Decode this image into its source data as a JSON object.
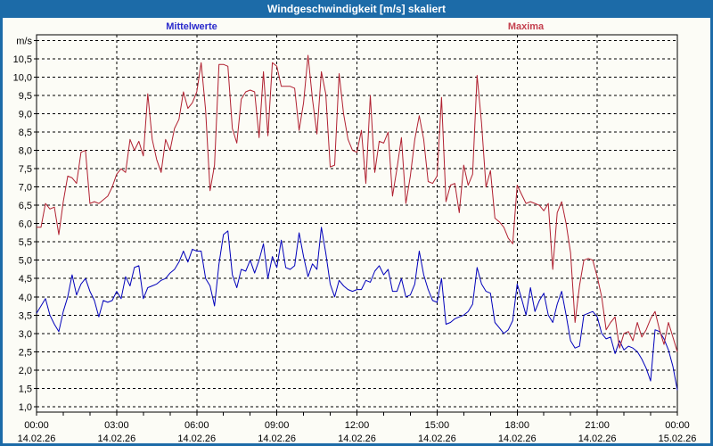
{
  "window": {
    "title": "Windgeschwindigkeit [m/s] skaliert"
  },
  "legend": {
    "mean_label": "Mittelwerte",
    "max_label": "Maxima"
  },
  "colors": {
    "titlebar": "#1c6ba8",
    "window_border": "#1c6ba8",
    "background": "#fcfcf6",
    "grid": "#000000",
    "mean_line": "#0000bb",
    "max_line": "#b02030",
    "mean_label_text": "#2a2acc",
    "max_label_text": "#c4404e"
  },
  "chart_data": {
    "type": "line",
    "title": "Windgeschwindigkeit [m/s] skaliert",
    "ylabel": "m/s",
    "xlabel": "",
    "ylim": [
      1.0,
      11.0
    ],
    "y_step": 0.5,
    "y_decimal_separator": ",",
    "grid": true,
    "grid_style": "dashed",
    "x_minutes_step": 10,
    "x_total_minutes": 1440,
    "x_tick_step_minutes": 180,
    "x_ticks": [
      {
        "time": "00:00",
        "date": "14.02.26"
      },
      {
        "time": "03:00",
        "date": "14.02.26"
      },
      {
        "time": "06:00",
        "date": "14.02.26"
      },
      {
        "time": "09:00",
        "date": "14.02.26"
      },
      {
        "time": "12:00",
        "date": "14.02.26"
      },
      {
        "time": "15:00",
        "date": "14.02.26"
      },
      {
        "time": "18:00",
        "date": "14.02.26"
      },
      {
        "time": "21:00",
        "date": "14.02.26"
      },
      {
        "time": "00:00",
        "date": "15.02.26"
      }
    ],
    "series": [
      {
        "name": "Mittelwerte",
        "color": "#0000bb",
        "values": [
          3.55,
          3.75,
          3.95,
          3.5,
          3.25,
          3.05,
          3.6,
          4.0,
          4.6,
          4.05,
          4.35,
          4.5,
          4.15,
          3.9,
          3.45,
          3.9,
          3.85,
          3.9,
          4.15,
          3.95,
          4.55,
          4.3,
          4.8,
          4.85,
          3.95,
          4.25,
          4.3,
          4.35,
          4.45,
          4.5,
          4.65,
          4.75,
          4.95,
          5.25,
          4.95,
          5.3,
          5.25,
          5.25,
          4.5,
          4.3,
          3.75,
          4.9,
          5.7,
          5.8,
          4.6,
          4.25,
          4.75,
          4.7,
          5.0,
          4.65,
          5.0,
          5.45,
          4.5,
          5.1,
          4.8,
          5.55,
          4.8,
          4.75,
          4.85,
          5.75,
          5.1,
          4.55,
          4.9,
          4.75,
          5.9,
          5.2,
          4.35,
          4.0,
          4.45,
          4.3,
          4.2,
          4.15,
          4.2,
          4.2,
          4.45,
          4.4,
          4.7,
          4.85,
          4.6,
          4.75,
          4.15,
          4.15,
          4.5,
          4.0,
          4.05,
          4.35,
          5.25,
          4.6,
          4.2,
          3.9,
          3.85,
          4.5,
          3.25,
          3.3,
          3.4,
          3.45,
          3.5,
          3.6,
          3.8,
          4.8,
          4.35,
          4.15,
          4.1,
          3.3,
          3.15,
          3.0,
          3.1,
          3.35,
          4.35,
          3.95,
          3.5,
          4.25,
          3.6,
          3.9,
          4.1,
          3.5,
          3.3,
          3.8,
          4.15,
          3.5,
          2.8,
          2.6,
          2.65,
          3.5,
          3.55,
          3.6,
          3.45,
          3.0,
          2.85,
          2.9,
          2.45,
          2.8,
          2.55,
          2.65,
          2.6,
          2.5,
          2.3,
          2.05,
          1.7,
          3.1,
          3.05,
          2.85,
          2.55,
          2.1,
          1.45
        ]
      },
      {
        "name": "Maxima",
        "color": "#b02030",
        "values": [
          5.9,
          5.9,
          6.55,
          6.4,
          6.45,
          5.7,
          6.6,
          7.3,
          7.25,
          7.1,
          7.95,
          8.0,
          6.55,
          6.6,
          6.55,
          6.65,
          6.75,
          7.0,
          7.35,
          7.5,
          7.4,
          8.3,
          8.0,
          8.25,
          7.85,
          9.55,
          8.3,
          7.75,
          7.4,
          8.3,
          8.0,
          8.6,
          8.85,
          9.6,
          9.15,
          9.3,
          9.6,
          10.4,
          9.1,
          6.9,
          7.6,
          10.35,
          10.35,
          10.3,
          8.6,
          8.2,
          9.4,
          9.6,
          9.65,
          9.6,
          8.35,
          10.15,
          8.4,
          10.4,
          10.3,
          9.75,
          9.75,
          9.75,
          9.7,
          8.55,
          9.3,
          10.6,
          9.4,
          8.45,
          10.15,
          9.55,
          7.55,
          7.6,
          10.1,
          9.0,
          8.3,
          8.0,
          7.95,
          8.55,
          7.1,
          9.5,
          7.4,
          8.25,
          8.2,
          8.5,
          6.75,
          7.5,
          8.35,
          6.55,
          7.3,
          8.3,
          8.95,
          8.3,
          7.15,
          7.1,
          7.3,
          9.45,
          6.6,
          7.05,
          7.1,
          6.3,
          7.6,
          7.05,
          7.35,
          10.05,
          8.75,
          7.0,
          7.45,
          6.15,
          6.05,
          5.9,
          5.6,
          5.45,
          7.05,
          6.8,
          6.55,
          6.6,
          6.55,
          6.5,
          6.35,
          6.55,
          4.75,
          6.3,
          6.6,
          6.0,
          5.2,
          3.3,
          4.3,
          5.0,
          5.05,
          5.0,
          4.55,
          4.0,
          3.1,
          3.3,
          3.45,
          2.6,
          3.0,
          3.05,
          2.8,
          3.3,
          2.9,
          3.1,
          3.4,
          3.6,
          3.1,
          2.7,
          3.3,
          2.9,
          2.5
        ]
      }
    ]
  }
}
